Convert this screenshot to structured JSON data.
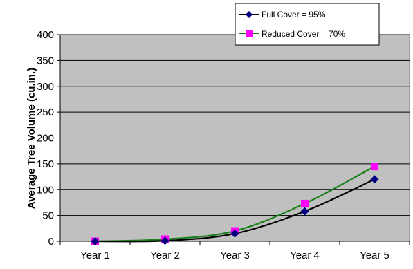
{
  "chart_data": {
    "type": "line",
    "title": "",
    "xlabel": "",
    "ylabel": "Average Tree Volume (cu.in.)",
    "categories": [
      "Year 1",
      "Year 2",
      "Year 3",
      "Year 4",
      "Year 5"
    ],
    "ylim": [
      0,
      400
    ],
    "yticks": [
      0,
      50,
      100,
      150,
      200,
      250,
      300,
      350,
      400
    ],
    "grid": true,
    "legend_position": "top-right",
    "plot_background": "#c0c0c0",
    "series": [
      {
        "name": "Full Cover = 95%",
        "values": [
          0,
          1,
          15,
          58,
          120
        ],
        "line_color": "#000000",
        "marker_color": "#00007f",
        "marker": "diamond"
      },
      {
        "name": "Reduced Cover = 70%",
        "values": [
          0,
          4,
          20,
          73,
          145
        ],
        "line_color": "#1a7f1a",
        "marker_color": "#ff00ff",
        "marker": "square"
      }
    ]
  }
}
